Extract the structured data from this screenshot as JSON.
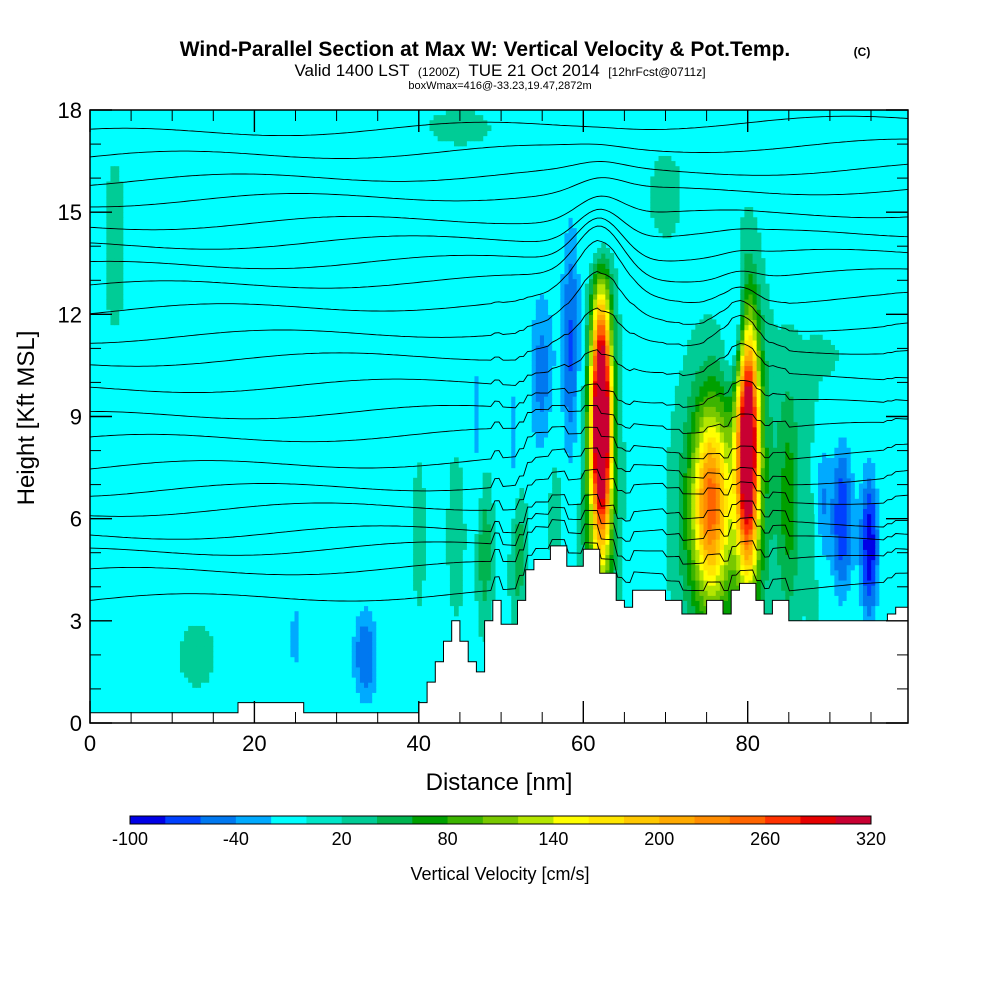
{
  "header": {
    "title": "Wind-Parallel Section at Max W: Vertical Velocity & Pot.Temp.",
    "copyright": "(C)",
    "subtitle_a": "Valid 1400 LST",
    "subtitle_b": "(1200Z)",
    "subtitle_c": "TUE 21 Oct 2014",
    "subtitle_d": "[12hrFcst@0711z]",
    "boxinfo": "boxWmax=416@-33.23,19.47,2872m"
  },
  "chart_data": {
    "type": "heatmap",
    "xlabel": "Distance [nm]",
    "ylabel": "Height [Kft MSL]",
    "xlim": [
      0,
      99.5
    ],
    "ylim": [
      0,
      18
    ],
    "x_ticks": [
      0,
      20,
      40,
      60,
      80
    ],
    "y_ticks": [
      0,
      3,
      6,
      9,
      12,
      15,
      18
    ],
    "background_value": 10,
    "terrain": {
      "x": [
        0,
        2,
        18,
        18,
        26,
        26,
        40,
        40,
        41,
        41,
        42,
        42,
        43,
        43,
        44,
        44,
        45,
        45,
        46,
        46,
        47,
        47,
        48,
        48,
        49,
        49,
        50,
        50,
        52,
        52,
        53,
        53,
        54,
        54,
        56,
        56,
        58,
        58,
        60,
        60,
        62,
        62,
        64,
        64,
        65,
        65,
        66,
        66,
        70,
        70,
        72,
        72,
        75,
        75,
        77,
        77,
        78,
        78,
        79,
        79,
        81,
        81,
        82,
        82,
        83,
        83,
        85,
        85,
        89,
        89,
        97,
        97,
        98,
        98,
        99.5
      ],
      "y": [
        0.3,
        0.3,
        0.3,
        0.6,
        0.6,
        0.3,
        0.3,
        0.6,
        0.6,
        1.2,
        1.2,
        1.8,
        1.8,
        2.4,
        2.4,
        3.0,
        3.0,
        2.4,
        2.4,
        1.8,
        1.8,
        1.5,
        1.5,
        3.0,
        3.0,
        3.6,
        3.6,
        2.9,
        2.9,
        3.6,
        3.6,
        4.5,
        4.5,
        4.8,
        4.8,
        5.2,
        5.2,
        4.6,
        4.6,
        5.1,
        5.1,
        4.4,
        4.4,
        3.6,
        3.6,
        3.4,
        3.4,
        3.9,
        3.9,
        3.6,
        3.6,
        3.2,
        3.2,
        3.6,
        3.6,
        3.2,
        3.2,
        3.9,
        3.9,
        4.1,
        4.1,
        3.6,
        3.6,
        3.2,
        3.2,
        3.6,
        3.6,
        3.0,
        3.0,
        3.0,
        3.0,
        3.2,
        3.2,
        3.4,
        3.4
      ]
    },
    "features": [
      {
        "x": 62.2,
        "y": 9.0,
        "sx": 0.85,
        "sy": 2.5,
        "value": 400
      },
      {
        "x": 61.8,
        "y": 6.5,
        "sx": 1.6,
        "sy": 3.2,
        "value": 70
      },
      {
        "x": 75.5,
        "y": 6.5,
        "sx": 1.5,
        "sy": 1.9,
        "value": 195
      },
      {
        "x": 75.3,
        "y": 6.0,
        "sx": 2.8,
        "sy": 2.8,
        "value": 70
      },
      {
        "x": 80.0,
        "y": 8.3,
        "sx": 0.9,
        "sy": 2.5,
        "value": 330
      },
      {
        "x": 80.3,
        "y": 7.2,
        "sx": 1.8,
        "sy": 3.2,
        "value": 80
      },
      {
        "x": 85.0,
        "y": 6.5,
        "sx": 1.0,
        "sy": 2.4,
        "value": 70
      },
      {
        "x": 88.0,
        "y": 5.5,
        "sx": 0.8,
        "sy": 2.5,
        "value": 35
      },
      {
        "x": 48.0,
        "y": 5.0,
        "sx": 0.7,
        "sy": 1.5,
        "value": 55
      },
      {
        "x": 52.0,
        "y": 5.2,
        "sx": 0.7,
        "sy": 1.6,
        "value": 60
      },
      {
        "x": 44.5,
        "y": 5.5,
        "sx": 0.7,
        "sy": 1.6,
        "value": 40
      },
      {
        "x": 56.5,
        "y": 7.0,
        "sx": 0.8,
        "sy": 1.8,
        "value": 35
      },
      {
        "x": 58.5,
        "y": 11.0,
        "sx": 0.9,
        "sy": 2.8,
        "value": -65
      },
      {
        "x": 55.0,
        "y": 10.2,
        "sx": 1.2,
        "sy": 2.0,
        "value": -50
      },
      {
        "x": 51.5,
        "y": 8.0,
        "sx": 0.6,
        "sy": 1.8,
        "value": -35
      },
      {
        "x": 47.0,
        "y": 9.0,
        "sx": 0.5,
        "sy": 1.8,
        "value": -28
      },
      {
        "x": 62.0,
        "y": 14.3,
        "sx": 1.0,
        "sy": 0.9,
        "value": -40
      },
      {
        "x": 78.8,
        "y": 11.4,
        "sx": 1.0,
        "sy": 1.3,
        "value": -60
      },
      {
        "x": 91.5,
        "y": 6.0,
        "sx": 1.0,
        "sy": 1.7,
        "value": -80
      },
      {
        "x": 94.8,
        "y": 5.2,
        "sx": 0.8,
        "sy": 1.6,
        "value": -100
      },
      {
        "x": 89.0,
        "y": 6.5,
        "sx": 0.7,
        "sy": 1.5,
        "value": -45
      },
      {
        "x": 33.5,
        "y": 2.0,
        "sx": 1.2,
        "sy": 1.1,
        "value": -60
      },
      {
        "x": 25.0,
        "y": 2.5,
        "sx": 1.0,
        "sy": 1.4,
        "value": -25
      },
      {
        "x": 40.0,
        "y": 5.5,
        "sx": 0.6,
        "sy": 1.8,
        "value": 30
      },
      {
        "x": 13.0,
        "y": 2.0,
        "sx": 3.5,
        "sy": 1.5,
        "value": 22
      },
      {
        "x": 3.0,
        "y": 14.0,
        "sx": 2.0,
        "sy": 4.0,
        "value": 22
      },
      {
        "x": 35.0,
        "y": 13.0,
        "sx": 2.0,
        "sy": 4.0,
        "value": 20
      },
      {
        "x": 70.0,
        "y": 15.5,
        "sx": 3.0,
        "sy": 2.0,
        "value": 22
      },
      {
        "x": 90.0,
        "y": 10.5,
        "sx": 4.0,
        "sy": 1.3,
        "value": 22
      },
      {
        "x": 45.0,
        "y": 17.5,
        "sx": 6.0,
        "sy": 0.8,
        "value": 22
      }
    ],
    "theta_contours": [
      {
        "y0": 3.6,
        "label": "",
        "label_x": 0
      },
      {
        "y0": 4.4,
        "label": "",
        "label_x": 0
      },
      {
        "y0": 5.0,
        "label": "",
        "label_x": 0
      },
      {
        "y0": 5.5,
        "label": "",
        "label_x": 0
      },
      {
        "y0": 6.2,
        "label": "",
        "label_x": 0
      },
      {
        "y0": 6.8,
        "label": "",
        "label_x": 0
      },
      {
        "y0": 7.5,
        "label": "",
        "label_x": 0
      },
      {
        "y0": 8.3,
        "label": "",
        "label_x": 0
      },
      {
        "y0": 9.0,
        "label": "",
        "label_x": 0
      },
      {
        "y0": 9.8,
        "label": "",
        "label_x": 0
      },
      {
        "y0": 10.6,
        "label": "",
        "label_x": 0
      },
      {
        "y0": 11.3,
        "label": "",
        "label_x": 0
      },
      {
        "y0": 12.1,
        "label": "",
        "label_x": 0
      },
      {
        "y0": 12.8,
        "label": "",
        "label_x": 0
      },
      {
        "y0": 13.4,
        "label": "",
        "label_x": 0
      },
      {
        "y0": 14.0,
        "label": "",
        "label_x": 0
      },
      {
        "y0": 14.6,
        "label": "",
        "label_x": 0
      },
      {
        "y0": 15.3,
        "label": "",
        "label_x": 0
      },
      {
        "y0": 15.9,
        "label": "",
        "label_x": 0
      },
      {
        "y0": 16.6,
        "label": "",
        "label_x": 0
      },
      {
        "y0": 17.3,
        "label": "",
        "label_x": 0
      }
    ],
    "colorbar": {
      "title": "Vertical Velocity [cm/s]",
      "min": -100,
      "step": 20,
      "labels": [
        {
          "value": -100,
          "text": "-100"
        },
        {
          "value": -40,
          "text": "-40"
        },
        {
          "value": 20,
          "text": "20"
        },
        {
          "value": 80,
          "text": "80"
        },
        {
          "value": 140,
          "text": "140"
        },
        {
          "value": 200,
          "text": "200"
        },
        {
          "value": 260,
          "text": "260"
        },
        {
          "value": 320,
          "text": "320"
        }
      ],
      "colors": [
        "#0000e6",
        "#0040ff",
        "#0078f0",
        "#00aaff",
        "#00ffff",
        "#00e6c8",
        "#00cc96",
        "#00b450",
        "#00a000",
        "#3cb400",
        "#78c800",
        "#b4e600",
        "#ffff00",
        "#ffe600",
        "#ffc800",
        "#ffaa00",
        "#ff8c00",
        "#ff6400",
        "#ff3200",
        "#e60000",
        "#c80032"
      ]
    }
  }
}
